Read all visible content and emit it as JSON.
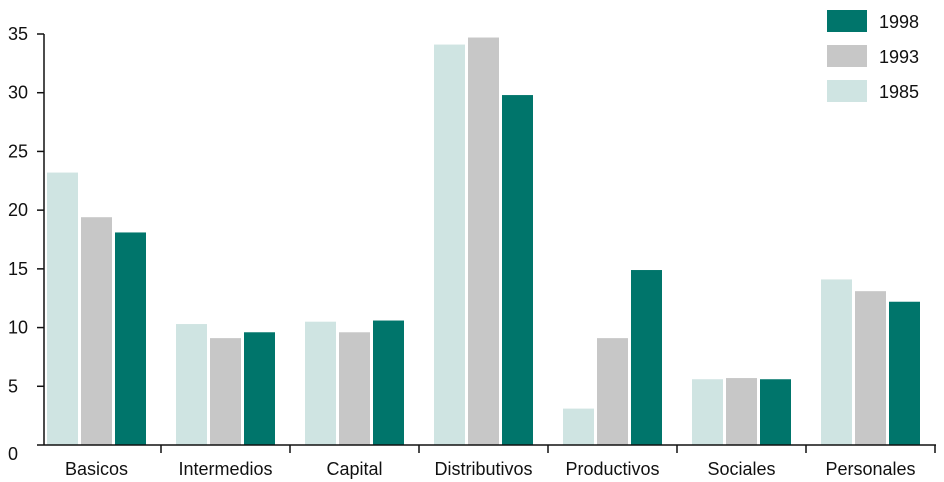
{
  "chart_data": {
    "type": "bar",
    "categories": [
      "Basicos",
      "Intermedios",
      "Capital",
      "Distributivos",
      "Productivos",
      "Sociales",
      "Personales"
    ],
    "series": [
      {
        "name": "1985",
        "color": "#cfe4e2",
        "values": [
          23.2,
          10.3,
          10.5,
          34.1,
          3.1,
          5.6,
          14.1
        ]
      },
      {
        "name": "1993",
        "color": "#c7c7c7",
        "values": [
          19.4,
          9.1,
          9.6,
          34.7,
          9.1,
          5.7,
          13.1
        ]
      },
      {
        "name": "1998",
        "color": "#00756b",
        "values": [
          18.1,
          9.6,
          10.6,
          29.8,
          14.9,
          5.6,
          12.2
        ]
      }
    ],
    "legend_order": [
      "1998",
      "1993",
      "1985"
    ],
    "legend_position": "top-right",
    "title": "",
    "xlabel": "",
    "ylabel": "",
    "ylim": [
      0,
      35
    ],
    "yticks": [
      "0",
      "5",
      "10",
      "15",
      "20",
      "25",
      "30",
      "35"
    ],
    "grid": false
  }
}
